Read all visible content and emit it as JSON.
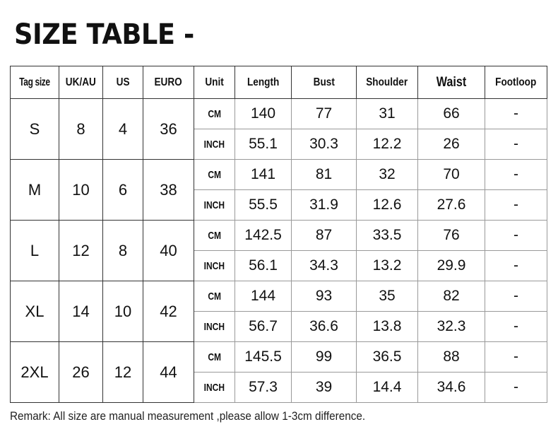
{
  "title": "SIZE TABLE -",
  "headers": [
    "Tag size",
    "UK/AU",
    "US",
    "EURO",
    "Unit",
    "Length",
    "Bust",
    "Shoulder",
    "Waist",
    "Footloop"
  ],
  "rows": [
    {
      "tag": "S",
      "uk": "8",
      "us": "4",
      "euro": "36",
      "cm": {
        "unit": "CM",
        "length": "140",
        "bust": "77",
        "shoulder": "31",
        "waist": "66",
        "footloop": "-"
      },
      "inch": {
        "unit": "INCH",
        "length": "55.1",
        "bust": "30.3",
        "shoulder": "12.2",
        "waist": "26",
        "footloop": "-"
      }
    },
    {
      "tag": "M",
      "uk": "10",
      "us": "6",
      "euro": "38",
      "cm": {
        "unit": "CM",
        "length": "141",
        "bust": "81",
        "shoulder": "32",
        "waist": "70",
        "footloop": "-"
      },
      "inch": {
        "unit": "INCH",
        "length": "55.5",
        "bust": "31.9",
        "shoulder": "12.6",
        "waist": "27.6",
        "footloop": "-"
      }
    },
    {
      "tag": "L",
      "uk": "12",
      "us": "8",
      "euro": "40",
      "cm": {
        "unit": "CM",
        "length": "142.5",
        "bust": "87",
        "shoulder": "33.5",
        "waist": "76",
        "footloop": "-"
      },
      "inch": {
        "unit": "INCH",
        "length": "56.1",
        "bust": "34.3",
        "shoulder": "13.2",
        "waist": "29.9",
        "footloop": "-"
      }
    },
    {
      "tag": "XL",
      "uk": "14",
      "us": "10",
      "euro": "42",
      "cm": {
        "unit": "CM",
        "length": "144",
        "bust": "93",
        "shoulder": "35",
        "waist": "82",
        "footloop": "-"
      },
      "inch": {
        "unit": "INCH",
        "length": "56.7",
        "bust": "36.6",
        "shoulder": "13.8",
        "waist": "32.3",
        "footloop": "-"
      }
    },
    {
      "tag": "2XL",
      "uk": "26",
      "us": "12",
      "euro": "44",
      "cm": {
        "unit": "CM",
        "length": "145.5",
        "bust": "99",
        "shoulder": "36.5",
        "waist": "88",
        "footloop": "-"
      },
      "inch": {
        "unit": "INCH",
        "length": "57.3",
        "bust": "39",
        "shoulder": "14.4",
        "waist": "34.6",
        "footloop": "-"
      }
    }
  ],
  "remark": "Remark: All size are manual measurement ,please allow 1-3cm difference."
}
